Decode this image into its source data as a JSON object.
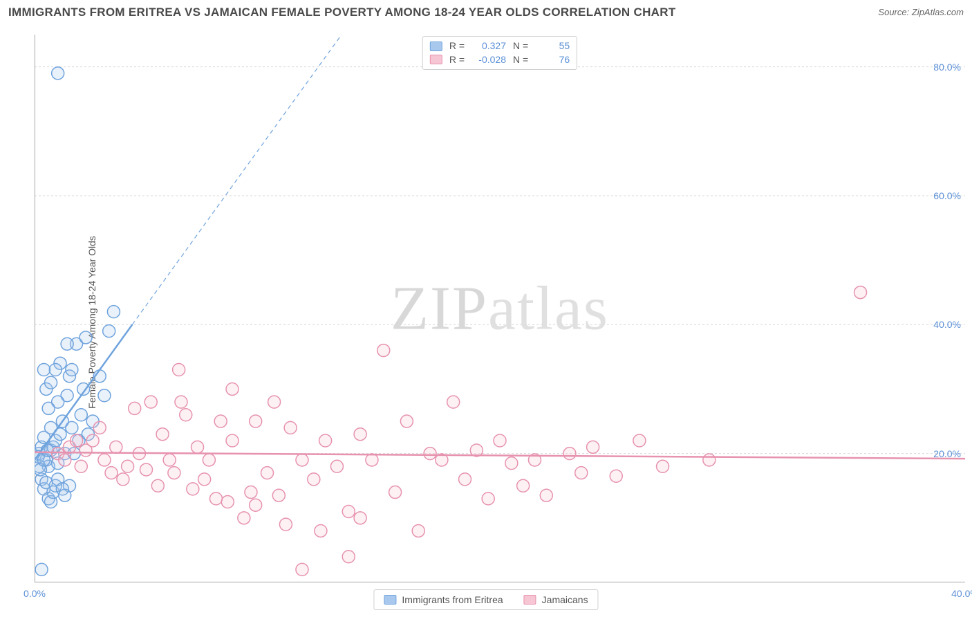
{
  "title": "IMMIGRANTS FROM ERITREA VS JAMAICAN FEMALE POVERTY AMONG 18-24 YEAR OLDS CORRELATION CHART",
  "source_label": "Source:",
  "source_name": "ZipAtlas.com",
  "y_axis_label": "Female Poverty Among 18-24 Year Olds",
  "watermark_a": "ZIP",
  "watermark_b": "atlas",
  "chart": {
    "type": "scatter",
    "xlim": [
      0,
      40
    ],
    "ylim": [
      0,
      85
    ],
    "x_ticks": [
      0,
      40
    ],
    "x_tick_labels": [
      "0.0%",
      "40.0%"
    ],
    "y_ticks": [
      20,
      40,
      60,
      80
    ],
    "y_tick_labels": [
      "20.0%",
      "40.0%",
      "60.0%",
      "80.0%"
    ],
    "grid_color": "#d8d8d8",
    "axis_color": "#888888",
    "background": "#ffffff",
    "marker_radius": 9,
    "marker_stroke_width": 1.5,
    "marker_fill_opacity": 0.25,
    "trend_line_width": 2.5,
    "trend_dash": "6,5"
  },
  "series": [
    {
      "name": "Immigrants from Eritrea",
      "color_fill": "#a9c8ed",
      "color_stroke": "#6fa3dd",
      "r_label": "R =",
      "r_value": "0.327",
      "n_label": "N =",
      "n_value": "55",
      "trend": {
        "x1": 0,
        "y1": 19,
        "x2": 4.2,
        "y2": 40,
        "dash_x2": 17,
        "dash_y2": 104
      },
      "points": [
        [
          0.2,
          20
        ],
        [
          0.3,
          21
        ],
        [
          0.4,
          22.5
        ],
        [
          0.5,
          19
        ],
        [
          0.6,
          18
        ],
        [
          0.7,
          24
        ],
        [
          0.7,
          20.5
        ],
        [
          0.8,
          21
        ],
        [
          0.9,
          22
        ],
        [
          1.0,
          18.5
        ],
        [
          1.1,
          23
        ],
        [
          1.2,
          25
        ],
        [
          1.3,
          20
        ],
        [
          1.4,
          29
        ],
        [
          1.5,
          32
        ],
        [
          1.6,
          24
        ],
        [
          0.3,
          16
        ],
        [
          0.4,
          14.5
        ],
        [
          0.5,
          15.5
        ],
        [
          0.6,
          13
        ],
        [
          0.7,
          12.5
        ],
        [
          0.8,
          14
        ],
        [
          0.9,
          15
        ],
        [
          1.5,
          15
        ],
        [
          1.0,
          16
        ],
        [
          1.2,
          14.5
        ],
        [
          1.3,
          13.5
        ],
        [
          1.7,
          20
        ],
        [
          1.9,
          22
        ],
        [
          2.0,
          26
        ],
        [
          2.1,
          30
        ],
        [
          2.3,
          23
        ],
        [
          2.5,
          25
        ],
        [
          2.8,
          32
        ],
        [
          3.0,
          29
        ],
        [
          1.8,
          37
        ],
        [
          2.2,
          38
        ],
        [
          3.2,
          39
        ],
        [
          3.4,
          42
        ],
        [
          1.1,
          34
        ],
        [
          0.9,
          33
        ],
        [
          1.4,
          37
        ],
        [
          0.5,
          30
        ],
        [
          0.7,
          31
        ],
        [
          1.6,
          33
        ],
        [
          0.4,
          33
        ],
        [
          1.0,
          28
        ],
        [
          0.6,
          27
        ],
        [
          0.3,
          2
        ],
        [
          1.0,
          79
        ],
        [
          0.2,
          18
        ],
        [
          0.15,
          19.5
        ],
        [
          0.25,
          17.5
        ],
        [
          0.4,
          19
        ],
        [
          0.55,
          20.5
        ]
      ]
    },
    {
      "name": "Jamaicans",
      "color_fill": "#f6c6d5",
      "color_stroke": "#e792ae",
      "r_label": "R =",
      "r_value": "-0.028",
      "n_label": "N =",
      "n_value": "76",
      "trend": {
        "x1": 0,
        "y1": 20.2,
        "x2": 40,
        "y2": 19.2
      },
      "points": [
        [
          1.0,
          20
        ],
        [
          1.3,
          19
        ],
        [
          1.5,
          21
        ],
        [
          1.8,
          22
        ],
        [
          2.0,
          18
        ],
        [
          2.2,
          20.5
        ],
        [
          2.5,
          22
        ],
        [
          2.8,
          24
        ],
        [
          3.0,
          19
        ],
        [
          3.3,
          17
        ],
        [
          3.5,
          21
        ],
        [
          3.8,
          16
        ],
        [
          4.0,
          18
        ],
        [
          4.3,
          27
        ],
        [
          4.5,
          20
        ],
        [
          4.8,
          17.5
        ],
        [
          5.0,
          28
        ],
        [
          5.3,
          15
        ],
        [
          5.5,
          23
        ],
        [
          5.8,
          19
        ],
        [
          6.0,
          17
        ],
        [
          6.3,
          28
        ],
        [
          6.5,
          26
        ],
        [
          6.8,
          14.5
        ],
        [
          7.0,
          21
        ],
        [
          7.3,
          16
        ],
        [
          7.5,
          19
        ],
        [
          7.8,
          13
        ],
        [
          8.0,
          25
        ],
        [
          8.3,
          12.5
        ],
        [
          8.5,
          22
        ],
        [
          9.0,
          10
        ],
        [
          9.3,
          14
        ],
        [
          9.5,
          25
        ],
        [
          10.0,
          17
        ],
        [
          10.3,
          28
        ],
        [
          10.5,
          13.5
        ],
        [
          11.0,
          24
        ],
        [
          11.5,
          19
        ],
        [
          12.0,
          16
        ],
        [
          12.3,
          8
        ],
        [
          12.5,
          22
        ],
        [
          13.0,
          18
        ],
        [
          13.5,
          4
        ],
        [
          14.0,
          23
        ],
        [
          14.5,
          19
        ],
        [
          15.0,
          36
        ],
        [
          15.5,
          14
        ],
        [
          16.0,
          25
        ],
        [
          16.5,
          8
        ],
        [
          17.0,
          20
        ],
        [
          17.5,
          19
        ],
        [
          18.0,
          28
        ],
        [
          18.5,
          16
        ],
        [
          19.0,
          20.5
        ],
        [
          19.5,
          13
        ],
        [
          20.0,
          22
        ],
        [
          20.5,
          18.5
        ],
        [
          21.0,
          15
        ],
        [
          21.5,
          19
        ],
        [
          22.0,
          13.5
        ],
        [
          23.0,
          20
        ],
        [
          23.5,
          17
        ],
        [
          24.0,
          21
        ],
        [
          25.0,
          16.5
        ],
        [
          26.0,
          22
        ],
        [
          27.0,
          18
        ],
        [
          29.0,
          19
        ],
        [
          35.5,
          45
        ],
        [
          6.2,
          33
        ],
        [
          8.5,
          30
        ],
        [
          11.5,
          2
        ],
        [
          9.5,
          12
        ],
        [
          14.0,
          10
        ],
        [
          10.8,
          9
        ],
        [
          13.5,
          11
        ]
      ]
    }
  ],
  "legend_bottom": [
    {
      "swatch_fill": "#a9c8ed",
      "swatch_stroke": "#6fa3dd",
      "label": "Immigrants from Eritrea"
    },
    {
      "swatch_fill": "#f6c6d5",
      "swatch_stroke": "#e792ae",
      "label": "Jamaicans"
    }
  ]
}
